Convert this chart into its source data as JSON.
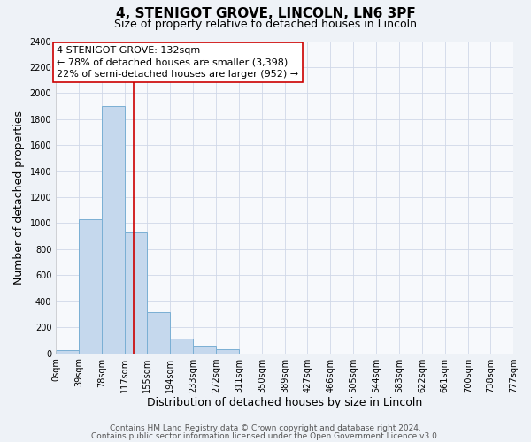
{
  "title": "4, STENIGOT GROVE, LINCOLN, LN6 3PF",
  "subtitle": "Size of property relative to detached houses in Lincoln",
  "xlabel": "Distribution of detached houses by size in Lincoln",
  "ylabel": "Number of detached properties",
  "bar_edges": [
    0,
    39,
    78,
    117,
    155,
    194,
    233,
    272,
    311,
    350,
    389,
    427,
    466,
    505,
    544,
    583,
    622,
    661,
    700,
    738,
    777
  ],
  "bar_heights": [
    25,
    1030,
    1900,
    930,
    320,
    110,
    55,
    30,
    0,
    0,
    0,
    0,
    0,
    0,
    0,
    0,
    0,
    0,
    0,
    0
  ],
  "tick_labels": [
    "0sqm",
    "39sqm",
    "78sqm",
    "117sqm",
    "155sqm",
    "194sqm",
    "233sqm",
    "272sqm",
    "311sqm",
    "350sqm",
    "389sqm",
    "427sqm",
    "466sqm",
    "505sqm",
    "544sqm",
    "583sqm",
    "622sqm",
    "661sqm",
    "700sqm",
    "738sqm",
    "777sqm"
  ],
  "bar_color": "#c5d8ed",
  "bar_edge_color": "#7aafd4",
  "property_line_x": 132,
  "property_line_color": "#cc0000",
  "ylim": [
    0,
    2400
  ],
  "yticks": [
    0,
    200,
    400,
    600,
    800,
    1000,
    1200,
    1400,
    1600,
    1800,
    2000,
    2200,
    2400
  ],
  "annotation_title": "4 STENIGOT GROVE: 132sqm",
  "annotation_line1": "← 78% of detached houses are smaller (3,398)",
  "annotation_line2": "22% of semi-detached houses are larger (952) →",
  "footer1": "Contains HM Land Registry data © Crown copyright and database right 2024.",
  "footer2": "Contains public sector information licensed under the Open Government Licence v3.0.",
  "title_fontsize": 11,
  "subtitle_fontsize": 9,
  "axis_label_fontsize": 9,
  "tick_fontsize": 7,
  "annotation_fontsize": 8,
  "footer_fontsize": 6.5,
  "background_color": "#eef2f7",
  "plot_bg_color": "#f7f9fc",
  "grid_color": "#d0d8e8"
}
